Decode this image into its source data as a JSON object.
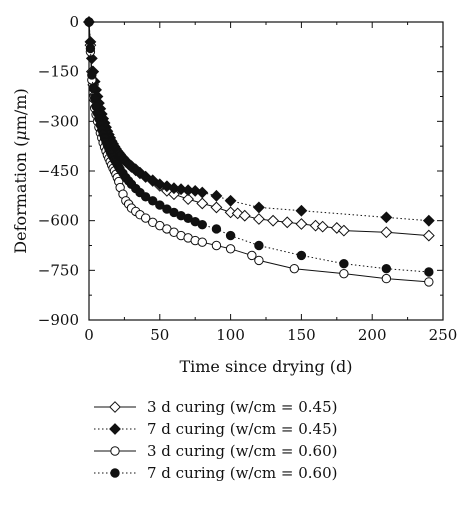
{
  "chart_data": {
    "type": "line",
    "xlabel": "Time since drying (d)",
    "ylabel_prefix": "Deformation (",
    "ylabel_mu": "μ",
    "ylabel_suffix": "m/m)",
    "xlim": [
      0,
      250
    ],
    "ylim": [
      -900,
      0
    ],
    "x_ticks": [
      0,
      50,
      100,
      150,
      200,
      250
    ],
    "y_ticks": [
      0,
      -150,
      -300,
      -450,
      -600,
      -750,
      -900
    ],
    "grid": false,
    "legend_position": "below",
    "series": [
      {
        "name": "3 d curing (w/cm = 0.45)",
        "marker": "open-diamond",
        "line_style": "solid",
        "x": [
          0,
          1,
          2,
          3,
          4,
          5,
          6,
          7,
          8,
          9,
          10,
          11,
          12,
          13,
          14,
          15,
          16,
          17,
          18,
          19,
          20,
          21,
          22,
          24,
          26,
          28,
          30,
          33,
          36,
          40,
          45,
          50,
          55,
          60,
          70,
          80,
          90,
          100,
          105,
          110,
          120,
          130,
          140,
          150,
          160,
          165,
          175,
          180,
          210,
          240
        ],
        "y": [
          0,
          -70,
          -150,
          -190,
          -220,
          -240,
          -255,
          -270,
          -285,
          -298,
          -310,
          -320,
          -330,
          -340,
          -350,
          -358,
          -365,
          -372,
          -378,
          -385,
          -390,
          -395,
          -400,
          -410,
          -420,
          -428,
          -435,
          -445,
          -455,
          -468,
          -480,
          -495,
          -510,
          -520,
          -535,
          -548,
          -560,
          -575,
          -578,
          -585,
          -595,
          -600,
          -605,
          -610,
          -615,
          -618,
          -622,
          -630,
          -635,
          -645
        ]
      },
      {
        "name": "7 d curing (w/cm = 0.45)",
        "marker": "filled-diamond",
        "line_style": "dotted",
        "x": [
          0,
          1,
          2,
          3,
          4,
          5,
          6,
          7,
          8,
          9,
          10,
          11,
          12,
          13,
          14,
          15,
          16,
          17,
          18,
          19,
          20,
          21,
          22,
          24,
          26,
          28,
          30,
          33,
          36,
          40,
          45,
          50,
          55,
          60,
          65,
          70,
          75,
          80,
          90,
          100,
          120,
          150,
          210,
          240
        ],
        "y": [
          0,
          -60,
          -110,
          -150,
          -180,
          -205,
          -225,
          -245,
          -262,
          -278,
          -292,
          -305,
          -318,
          -330,
          -340,
          -350,
          -360,
          -368,
          -376,
          -383,
          -390,
          -397,
          -403,
          -413,
          -422,
          -430,
          -438,
          -448,
          -457,
          -467,
          -478,
          -490,
          -496,
          -502,
          -505,
          -508,
          -510,
          -515,
          -525,
          -540,
          -560,
          -570,
          -590,
          -600
        ]
      },
      {
        "name": "3 d curing (w/cm = 0.60)",
        "marker": "open-circle",
        "line_style": "solid",
        "x": [
          0,
          1,
          2,
          3,
          4,
          5,
          6,
          7,
          8,
          9,
          10,
          11,
          12,
          13,
          14,
          15,
          16,
          17,
          18,
          19,
          20,
          21,
          22,
          24,
          26,
          28,
          30,
          33,
          36,
          40,
          45,
          50,
          55,
          60,
          65,
          70,
          75,
          80,
          90,
          100,
          115,
          120,
          145,
          180,
          210,
          240
        ],
        "y": [
          0,
          -90,
          -175,
          -230,
          -260,
          -280,
          -300,
          -318,
          -335,
          -350,
          -365,
          -378,
          -390,
          -402,
          -412,
          -422,
          -432,
          -442,
          -450,
          -460,
          -470,
          -482,
          -500,
          -520,
          -540,
          -550,
          -562,
          -572,
          -582,
          -592,
          -605,
          -615,
          -625,
          -635,
          -645,
          -652,
          -660,
          -665,
          -675,
          -685,
          -705,
          -720,
          -745,
          -760,
          -775,
          -785
        ]
      },
      {
        "name": "7 d curing (w/cm = 0.60)",
        "marker": "filled-circle",
        "line_style": "dotted",
        "x": [
          0,
          1,
          2,
          3,
          4,
          5,
          6,
          7,
          8,
          9,
          10,
          11,
          12,
          13,
          14,
          15,
          16,
          17,
          18,
          19,
          20,
          21,
          22,
          24,
          26,
          28,
          30,
          33,
          36,
          40,
          45,
          50,
          55,
          60,
          65,
          70,
          75,
          80,
          90,
          100,
          120,
          150,
          180,
          210,
          240
        ],
        "y": [
          0,
          -80,
          -160,
          -200,
          -230,
          -255,
          -275,
          -292,
          -310,
          -325,
          -338,
          -350,
          -362,
          -372,
          -382,
          -392,
          -400,
          -408,
          -416,
          -423,
          -430,
          -438,
          -445,
          -457,
          -470,
          -480,
          -490,
          -503,
          -515,
          -528,
          -540,
          -553,
          -565,
          -575,
          -585,
          -593,
          -603,
          -612,
          -625,
          -645,
          -675,
          -705,
          -730,
          -745,
          -755
        ]
      }
    ]
  }
}
